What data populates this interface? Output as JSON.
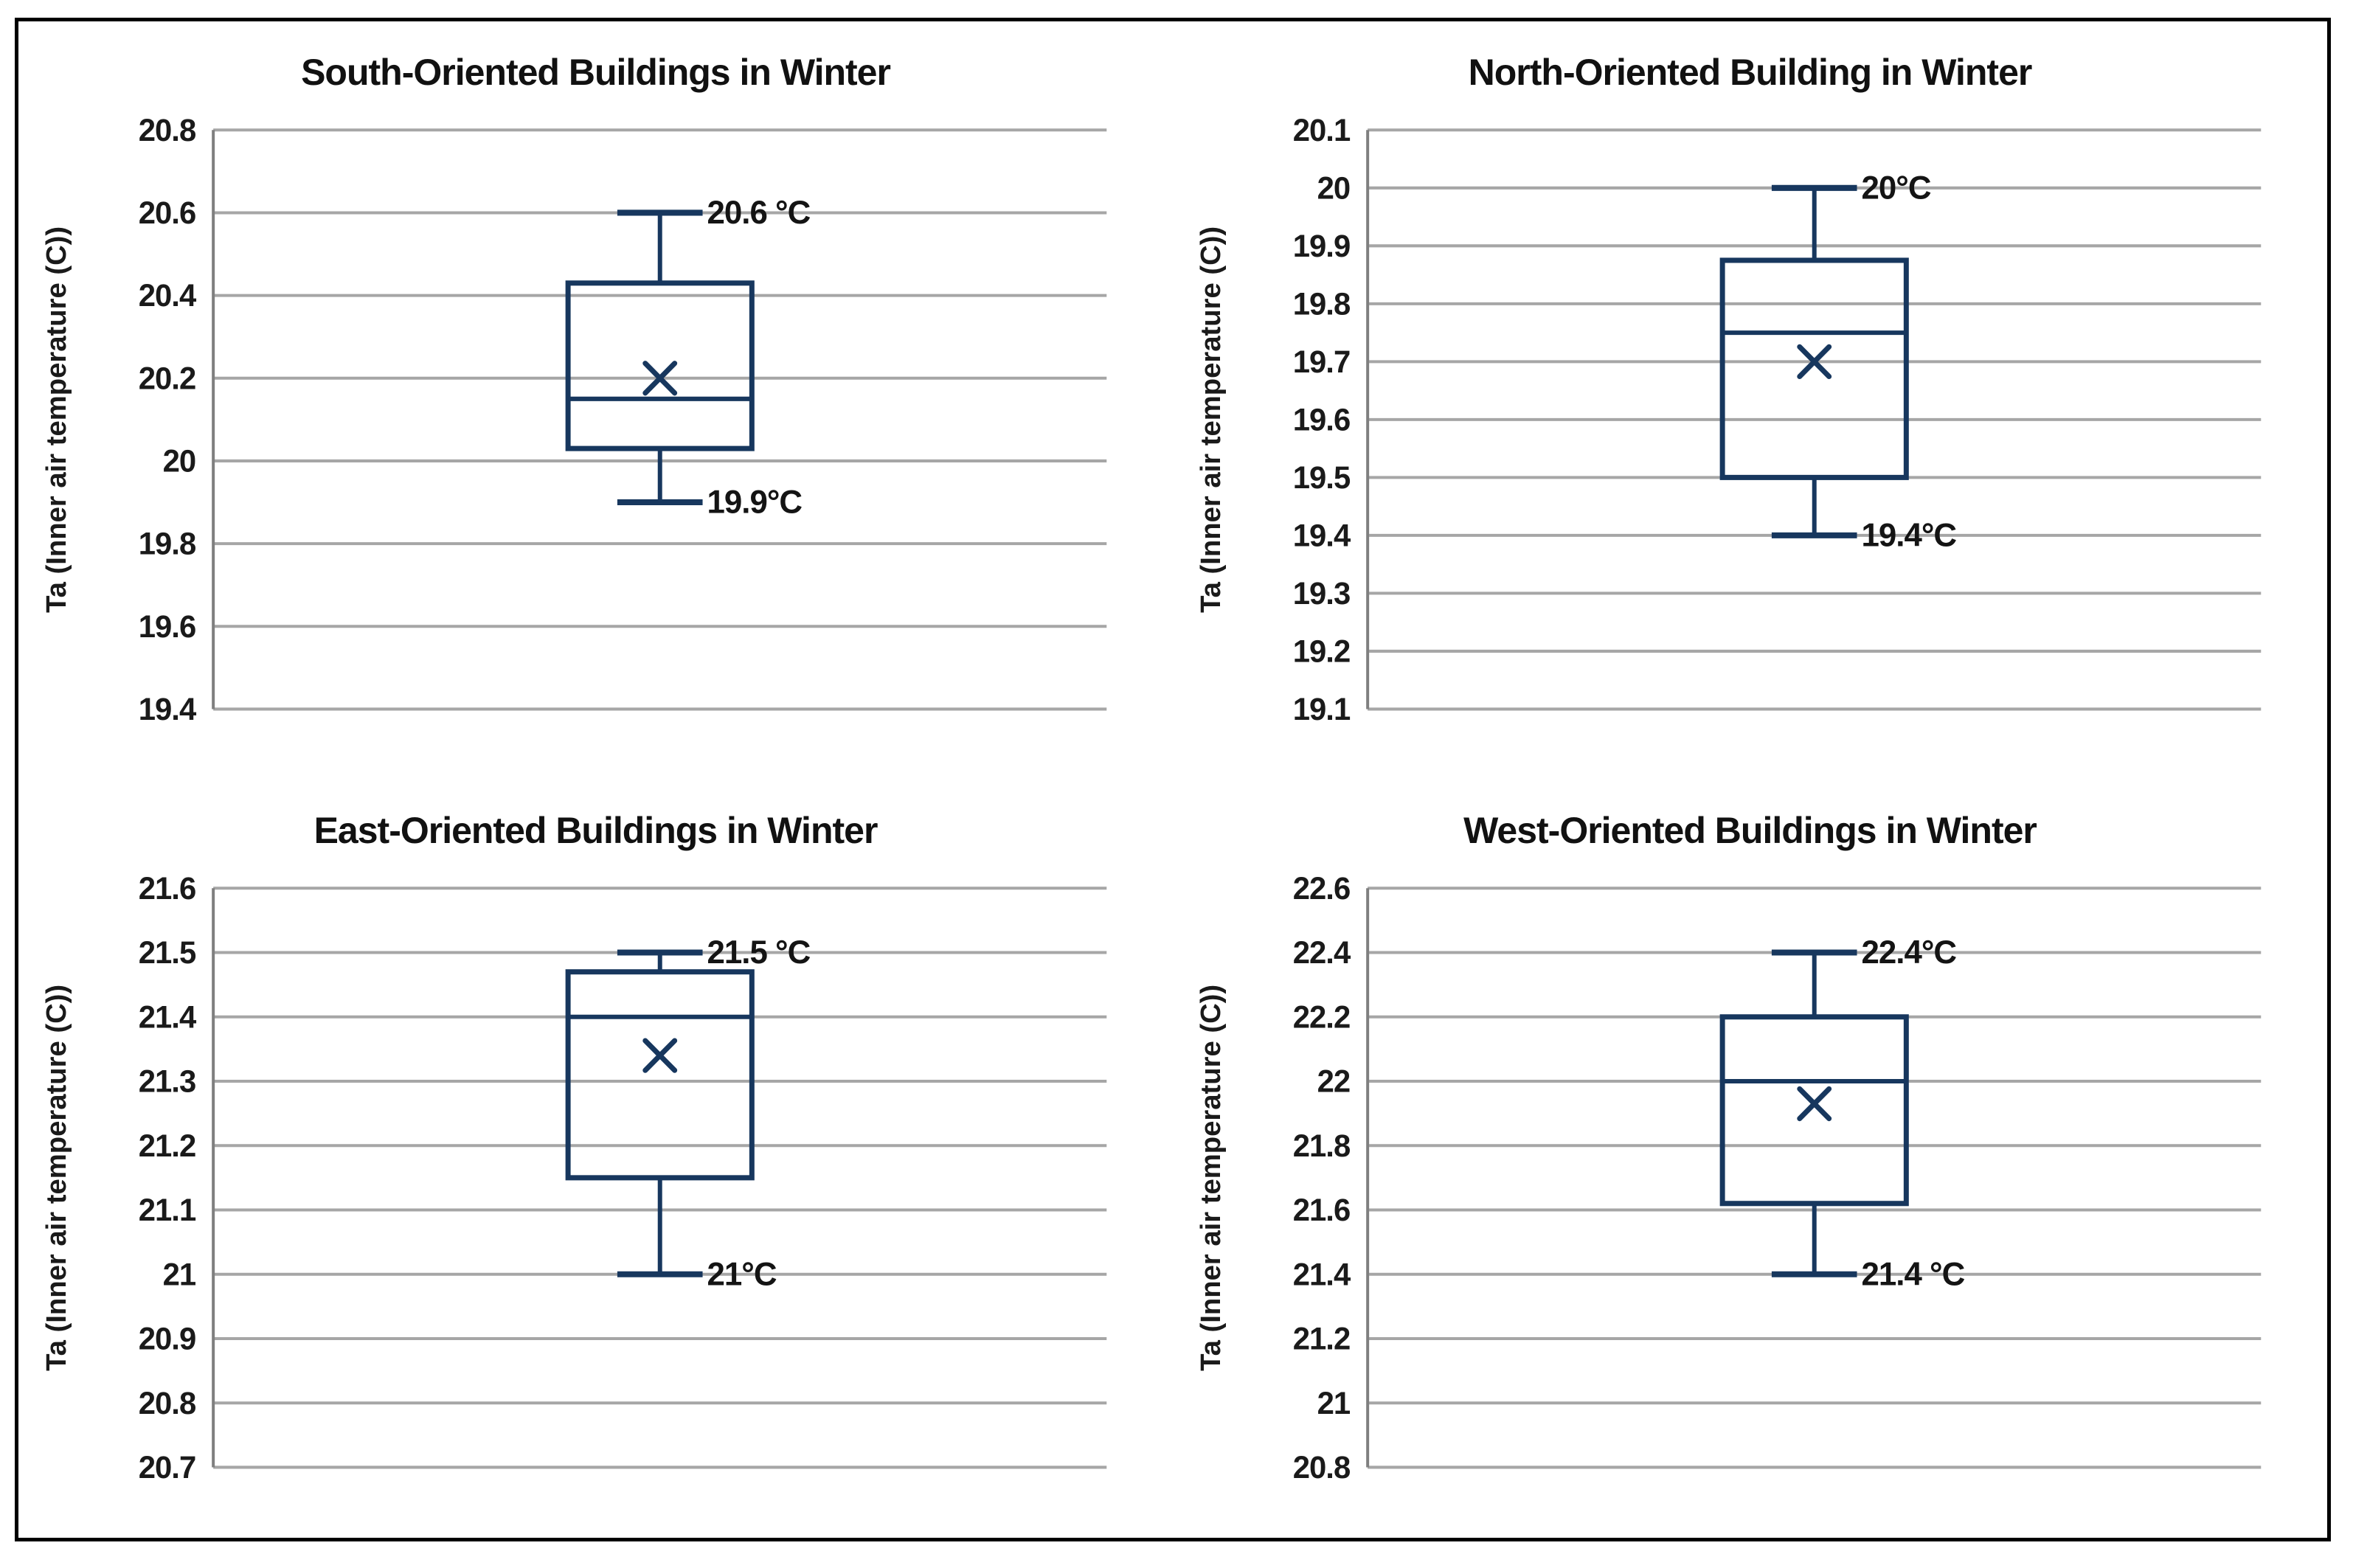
{
  "colors": {
    "box": "#17375e",
    "grid": "#a6a6a6",
    "axis": "#7f7f7f",
    "tick_text": "#1a1a1a",
    "title_text": "#111111",
    "annotation_text": "#141414",
    "frame_border": "#000000",
    "background": "#ffffff"
  },
  "chart_data": [
    {
      "type": "box",
      "title": "South-Oriented Buildings in Winter",
      "ylabel": "Ta (Inner air temperature (C))",
      "ylim": [
        19.4,
        20.8
      ],
      "grid": true,
      "yticks": [
        {
          "value": 20.8,
          "label": "20.8"
        },
        {
          "value": 20.6,
          "label": "20.6"
        },
        {
          "value": 20.4,
          "label": "20.4"
        },
        {
          "value": 20.2,
          "label": "20.2"
        },
        {
          "value": 20.0,
          "label": "20"
        },
        {
          "value": 19.8,
          "label": "19.8"
        },
        {
          "value": 19.6,
          "label": "19.6"
        },
        {
          "value": 19.4,
          "label": "19.4"
        }
      ],
      "box": {
        "whisker_high": 20.6,
        "q3": 20.43,
        "median": 20.15,
        "mean": 20.2,
        "q1": 20.03,
        "whisker_low": 19.9
      },
      "annotations": {
        "high": "20.6 °C",
        "low": "19.9°C"
      }
    },
    {
      "type": "box",
      "title": "North-Oriented Building in Winter",
      "ylabel": "Ta (Inner air temperature (C))",
      "ylim": [
        19.1,
        20.1
      ],
      "grid": true,
      "yticks": [
        {
          "value": 20.1,
          "label": "20.1"
        },
        {
          "value": 20.0,
          "label": "20"
        },
        {
          "value": 19.9,
          "label": "19.9"
        },
        {
          "value": 19.8,
          "label": "19.8"
        },
        {
          "value": 19.7,
          "label": "19.7"
        },
        {
          "value": 19.6,
          "label": "19.6"
        },
        {
          "value": 19.5,
          "label": "19.5"
        },
        {
          "value": 19.4,
          "label": "19.4"
        },
        {
          "value": 19.3,
          "label": "19.3"
        },
        {
          "value": 19.2,
          "label": "19.2"
        },
        {
          "value": 19.1,
          "label": "19.1"
        }
      ],
      "box": {
        "whisker_high": 20.0,
        "q3": 19.875,
        "median": 19.75,
        "mean": 19.7,
        "q1": 19.5,
        "whisker_low": 19.4
      },
      "annotations": {
        "high": "20°C",
        "low": "19.4°C"
      }
    },
    {
      "type": "box",
      "title": "East-Oriented Buildings in Winter",
      "ylabel": "Ta (Inner air temperature (C))",
      "ylim": [
        20.7,
        21.6
      ],
      "grid": true,
      "yticks": [
        {
          "value": 21.6,
          "label": "21.6"
        },
        {
          "value": 21.5,
          "label": "21.5"
        },
        {
          "value": 21.4,
          "label": "21.4"
        },
        {
          "value": 21.3,
          "label": "21.3"
        },
        {
          "value": 21.2,
          "label": "21.2"
        },
        {
          "value": 21.1,
          "label": "21.1"
        },
        {
          "value": 21.0,
          "label": "21"
        },
        {
          "value": 20.9,
          "label": "20.9"
        },
        {
          "value": 20.8,
          "label": "20.8"
        },
        {
          "value": 20.7,
          "label": "20.7"
        }
      ],
      "box": {
        "whisker_high": 21.5,
        "q3": 21.47,
        "median": 21.4,
        "mean": 21.34,
        "q1": 21.15,
        "whisker_low": 21.0
      },
      "annotations": {
        "high": "21.5 °C",
        "low": "21°C"
      }
    },
    {
      "type": "box",
      "title": "West-Oriented Buildings in Winter",
      "ylabel": "Ta (Inner air temperature (C))",
      "ylim": [
        20.8,
        22.6
      ],
      "grid": true,
      "yticks": [
        {
          "value": 22.6,
          "label": "22.6"
        },
        {
          "value": 22.4,
          "label": "22.4"
        },
        {
          "value": 22.2,
          "label": "22.2"
        },
        {
          "value": 22.0,
          "label": "22"
        },
        {
          "value": 21.8,
          "label": "21.8"
        },
        {
          "value": 21.6,
          "label": "21.6"
        },
        {
          "value": 21.4,
          "label": "21.4"
        },
        {
          "value": 21.2,
          "label": "21.2"
        },
        {
          "value": 21.0,
          "label": "21"
        },
        {
          "value": 20.8,
          "label": "20.8"
        }
      ],
      "box": {
        "whisker_high": 22.4,
        "q3": 22.2,
        "median": 22.0,
        "mean": 21.93,
        "q1": 21.62,
        "whisker_low": 21.4
      },
      "annotations": {
        "high": "22.4°C",
        "low": "21.4 °C"
      }
    }
  ]
}
